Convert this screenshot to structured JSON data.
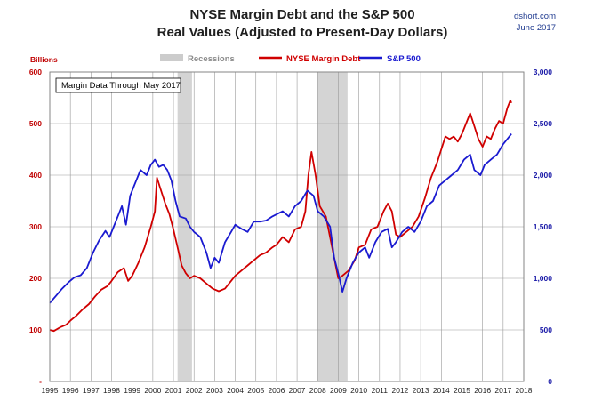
{
  "chart_data": {
    "type": "line",
    "title": "NYSE Margin Debt and the S&P 500",
    "subtitle": "Real Values (Adjusted to Present-Day Dollars)",
    "source": "dshort.com",
    "date": "June 2017",
    "note": "Margin Data Through May 2017",
    "left_axis": {
      "label": "Billions",
      "range": [
        0,
        600
      ],
      "ticks": [
        0,
        100,
        200,
        300,
        400,
        500,
        600
      ],
      "tick_labels": [
        "-",
        "100",
        "200",
        "300",
        "400",
        "500",
        "600"
      ],
      "color": "#c00000"
    },
    "right_axis": {
      "range": [
        0,
        3000
      ],
      "ticks": [
        0,
        500,
        1000,
        1500,
        2000,
        2500,
        3000
      ],
      "tick_labels": [
        "0",
        "500",
        "1,000",
        "1,500",
        "2,000",
        "2,500",
        "3,000"
      ],
      "color": "#1a1aa8"
    },
    "x_axis": {
      "range": [
        1995,
        2018
      ],
      "ticks": [
        1995,
        1996,
        1997,
        1998,
        1999,
        2000,
        2001,
        2002,
        2003,
        2004,
        2005,
        2006,
        2007,
        2008,
        2009,
        2010,
        2011,
        2012,
        2013,
        2014,
        2015,
        2016,
        2017,
        2018
      ],
      "tick_labels": [
        "1995",
        "1996",
        "1997",
        "1998",
        "1999",
        "2000",
        "2001",
        "2002",
        "2003",
        "2004",
        "2005",
        "2006",
        "2007",
        "2008",
        "2009",
        "2010",
        "2011",
        "2012",
        "2013",
        "2014",
        "2015",
        "2016",
        "2017",
        "2018"
      ]
    },
    "grid": true,
    "legend": {
      "placement": "top-center",
      "items": [
        {
          "label": "Recessions",
          "color": "#cccccc",
          "kind": "band"
        },
        {
          "label": "NYSE Margin Debt",
          "color": "#d00000",
          "kind": "line"
        },
        {
          "label": "S&P 500",
          "color": "#1a1ad0",
          "kind": "line"
        }
      ]
    },
    "recessions": [
      {
        "start": 2001.2,
        "end": 2001.9
      },
      {
        "start": 2007.95,
        "end": 2009.45
      }
    ],
    "series": [
      {
        "name": "NYSE Margin Debt",
        "axis": "left",
        "color": "#d00000",
        "x": [
          1995.0,
          1995.2,
          1995.5,
          1995.8,
          1996.0,
          1996.3,
          1996.6,
          1996.9,
          1997.2,
          1997.5,
          1997.8,
          1998.0,
          1998.3,
          1998.6,
          1998.8,
          1999.0,
          1999.3,
          1999.6,
          1999.9,
          2000.1,
          2000.2,
          2000.4,
          2000.6,
          2000.8,
          2001.0,
          2001.2,
          2001.4,
          2001.6,
          2001.8,
          2002.0,
          2002.3,
          2002.6,
          2002.9,
          2003.2,
          2003.5,
          2003.8,
          2004.0,
          2004.3,
          2004.6,
          2004.9,
          2005.2,
          2005.5,
          2005.8,
          2006.0,
          2006.3,
          2006.6,
          2006.9,
          2007.2,
          2007.4,
          2007.55,
          2007.7,
          2007.9,
          2008.1,
          2008.4,
          2008.7,
          2008.9,
          2009.0,
          2009.2,
          2009.5,
          2009.8,
          2010.0,
          2010.3,
          2010.6,
          2010.9,
          2011.2,
          2011.4,
          2011.6,
          2011.8,
          2012.0,
          2012.3,
          2012.6,
          2012.9,
          2013.2,
          2013.5,
          2013.8,
          2014.0,
          2014.2,
          2014.4,
          2014.6,
          2014.8,
          2015.0,
          2015.2,
          2015.4,
          2015.6,
          2015.8,
          2016.0,
          2016.2,
          2016.4,
          2016.6,
          2016.8,
          2017.0,
          2017.2,
          2017.35,
          2017.4
        ],
        "values": [
          100,
          98,
          105,
          110,
          118,
          128,
          140,
          150,
          165,
          178,
          185,
          195,
          212,
          220,
          195,
          205,
          230,
          260,
          300,
          330,
          395,
          370,
          345,
          325,
          295,
          260,
          225,
          210,
          200,
          205,
          200,
          190,
          180,
          175,
          180,
          195,
          205,
          215,
          225,
          235,
          245,
          250,
          260,
          265,
          280,
          270,
          295,
          300,
          330,
          400,
          445,
          400,
          340,
          320,
          260,
          220,
          200,
          205,
          215,
          235,
          260,
          265,
          295,
          300,
          330,
          345,
          330,
          285,
          280,
          290,
          300,
          320,
          355,
          395,
          425,
          450,
          475,
          470,
          475,
          465,
          480,
          500,
          520,
          495,
          470,
          455,
          475,
          470,
          490,
          505,
          500,
          530,
          545,
          540
        ]
      },
      {
        "name": "S&P 500",
        "axis": "right",
        "color": "#1a1ad0",
        "x": [
          1995.0,
          1995.3,
          1995.6,
          1995.9,
          1996.2,
          1996.5,
          1996.8,
          1997.1,
          1997.4,
          1997.7,
          1997.9,
          1998.2,
          1998.5,
          1998.7,
          1998.9,
          1999.1,
          1999.4,
          1999.7,
          1999.9,
          2000.1,
          2000.3,
          2000.5,
          2000.7,
          2000.9,
          2001.1,
          2001.3,
          2001.6,
          2001.8,
          2002.0,
          2002.3,
          2002.6,
          2002.8,
          2003.0,
          2003.2,
          2003.5,
          2003.8,
          2004.0,
          2004.3,
          2004.6,
          2004.9,
          2005.2,
          2005.5,
          2005.8,
          2006.0,
          2006.3,
          2006.6,
          2006.9,
          2007.2,
          2007.5,
          2007.8,
          2008.0,
          2008.3,
          2008.6,
          2008.8,
          2009.0,
          2009.2,
          2009.4,
          2009.7,
          2010.0,
          2010.3,
          2010.5,
          2010.8,
          2011.1,
          2011.4,
          2011.6,
          2011.8,
          2012.1,
          2012.4,
          2012.7,
          2013.0,
          2013.3,
          2013.6,
          2013.9,
          2014.2,
          2014.5,
          2014.8,
          2015.1,
          2015.4,
          2015.6,
          2015.9,
          2016.1,
          2016.4,
          2016.7,
          2017.0,
          2017.2,
          2017.4
        ],
        "values": [
          760,
          830,
          900,
          960,
          1010,
          1030,
          1100,
          1250,
          1370,
          1460,
          1400,
          1550,
          1700,
          1520,
          1800,
          1900,
          2050,
          2000,
          2100,
          2150,
          2080,
          2100,
          2050,
          1950,
          1750,
          1600,
          1580,
          1500,
          1450,
          1400,
          1250,
          1100,
          1200,
          1150,
          1350,
          1450,
          1520,
          1480,
          1450,
          1550,
          1550,
          1560,
          1600,
          1620,
          1650,
          1600,
          1700,
          1750,
          1850,
          1800,
          1650,
          1600,
          1500,
          1200,
          1050,
          870,
          1000,
          1150,
          1250,
          1300,
          1200,
          1350,
          1450,
          1480,
          1300,
          1350,
          1450,
          1500,
          1450,
          1550,
          1700,
          1750,
          1900,
          1950,
          2000,
          2050,
          2150,
          2200,
          2050,
          2000,
          2100,
          2150,
          2200,
          2300,
          2350,
          2400
        ]
      }
    ]
  }
}
